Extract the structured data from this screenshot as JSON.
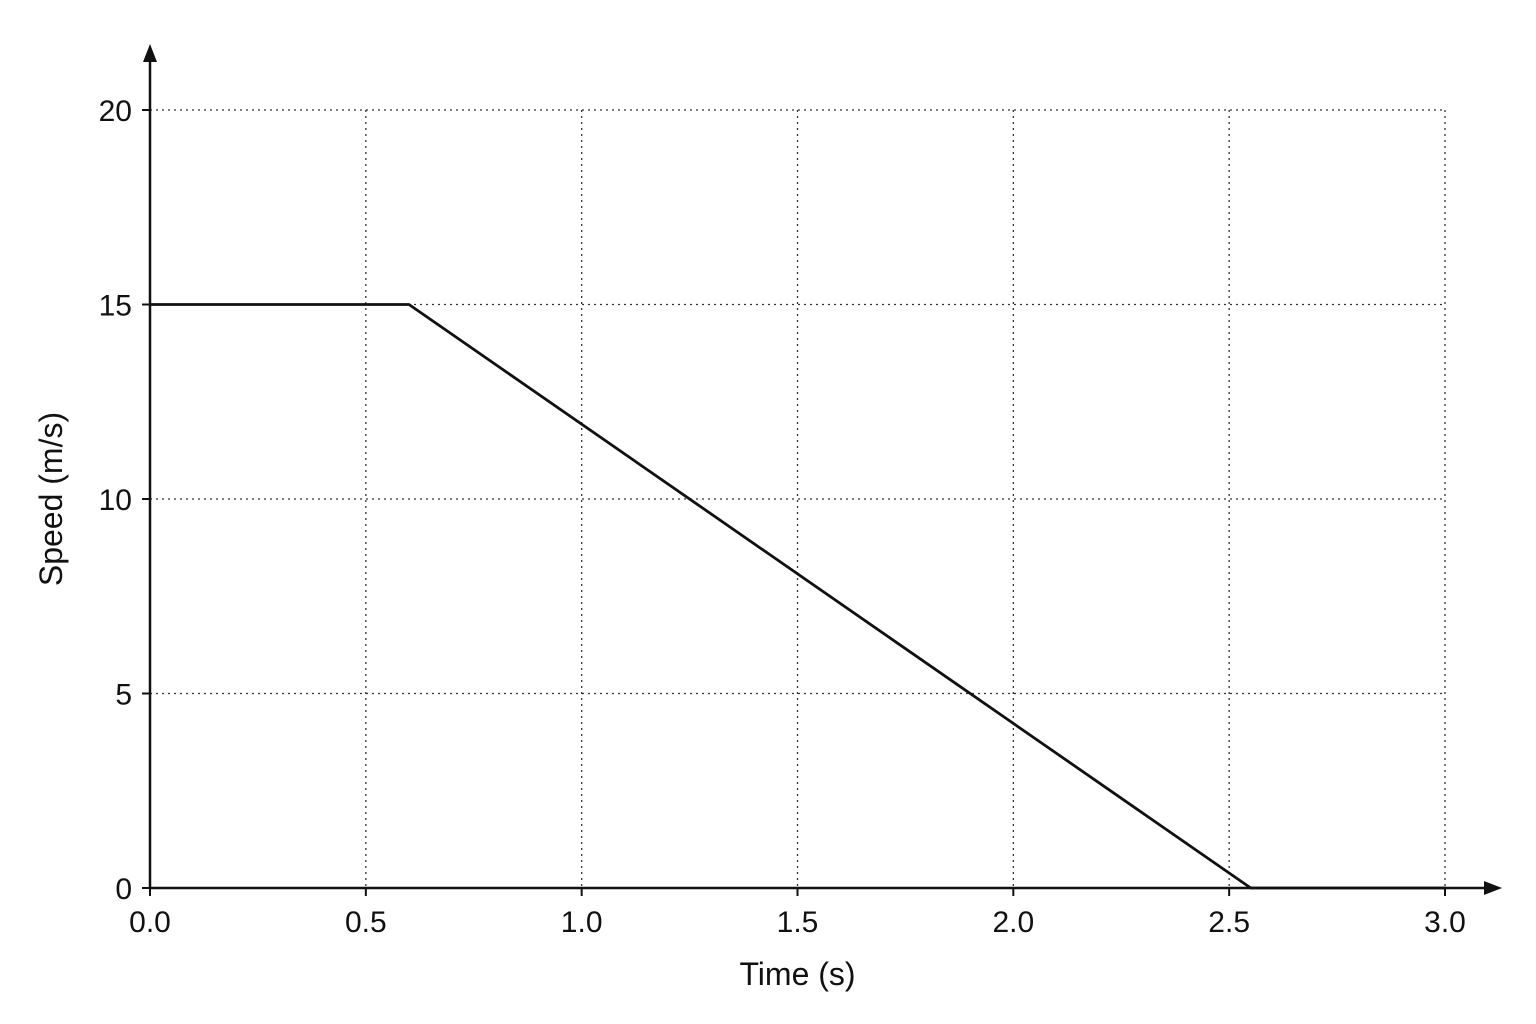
{
  "chart_data": {
    "type": "line",
    "title": "",
    "xlabel": "Time (s)",
    "ylabel": "Speed (m/s)",
    "xlim": [
      0,
      3.0
    ],
    "ylim": [
      0,
      20
    ],
    "x_ticks": [
      "0.0",
      "0.5",
      "1.0",
      "1.5",
      "2.0",
      "2.5",
      "3.0"
    ],
    "y_ticks": [
      "0",
      "5",
      "10",
      "15",
      "20"
    ],
    "grid": true,
    "grid_style": "dotted",
    "legend": "none",
    "series": [
      {
        "x": [
          0.0,
          0.6,
          2.55,
          3.0
        ],
        "y": [
          15,
          15,
          0,
          0
        ],
        "color": "#111111"
      }
    ]
  }
}
